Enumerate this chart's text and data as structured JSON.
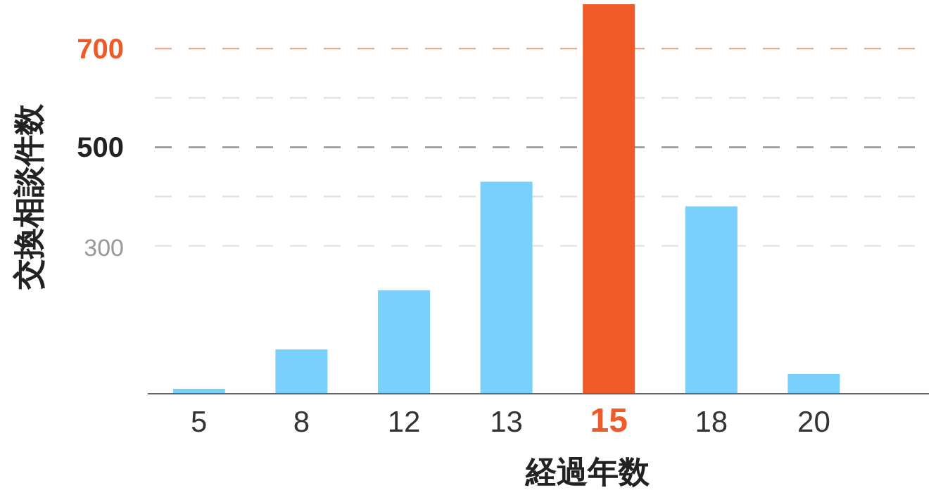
{
  "chart_data": {
    "type": "bar",
    "xlabel": "経過年数",
    "ylabel": "交換相談件数",
    "categories": [
      "5",
      "8",
      "12",
      "13",
      "15",
      "18",
      "20"
    ],
    "values": [
      10,
      90,
      210,
      430,
      790,
      380,
      40
    ],
    "colors": [
      "#7ad0fc",
      "#7ad0fc",
      "#7ad0fc",
      "#7ad0fc",
      "#f05a28",
      "#7ad0fc",
      "#7ad0fc"
    ],
    "ylim": [
      0,
      790
    ],
    "yticks": [
      {
        "value": 300,
        "label": "300"
      },
      {
        "value": 400,
        "label": null
      },
      {
        "value": 500,
        "label": "500"
      },
      {
        "value": 600,
        "label": null
      },
      {
        "value": 700,
        "label": "700"
      }
    ],
    "ref_lines": [
      {
        "axis": "y",
        "value": 700,
        "color": "#f05a28"
      },
      {
        "axis": "y",
        "value": 500,
        "color": "#555555"
      }
    ],
    "grid": "y"
  }
}
